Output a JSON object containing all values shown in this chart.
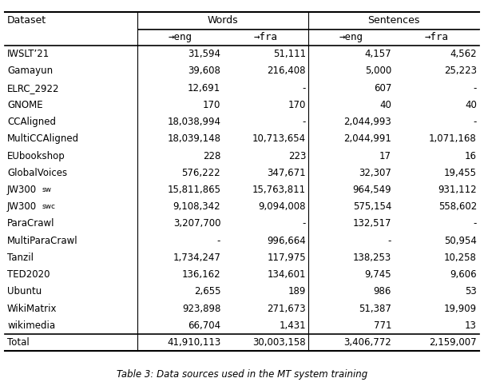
{
  "title": "Table 3: Data sources used in the MT system training",
  "col_headers": [
    "Dataset",
    "→eng",
    "→fra",
    "→eng",
    "→fra"
  ],
  "group_headers": [
    {
      "label": "Words",
      "cols": [
        1,
        2
      ]
    },
    {
      "label": "Sentences",
      "cols": [
        3,
        4
      ]
    }
  ],
  "rows": [
    [
      "IWSLT’21",
      "31,594",
      "51,111",
      "4,157",
      "4,562"
    ],
    [
      "Gamayun",
      "39,608",
      "216,408",
      "5,000",
      "25,223"
    ],
    [
      "ELRC_2922",
      "12,691",
      "-",
      "607",
      "-"
    ],
    [
      "GNOME",
      "170",
      "170",
      "40",
      "40"
    ],
    [
      "CCAligned",
      "18,038,994",
      "-",
      "2,044,993",
      "-"
    ],
    [
      "MultiCCAligned",
      "18,039,148",
      "10,713,654",
      "2,044,991",
      "1,071,168"
    ],
    [
      "EUbookshop",
      "228",
      "223",
      "17",
      "16"
    ],
    [
      "GlobalVoices",
      "576,222",
      "347,671",
      "32,307",
      "19,455"
    ],
    [
      "JW300 sw",
      "15,811,865",
      "15,763,811",
      "964,549",
      "931,112"
    ],
    [
      "JW300 swc",
      "9,108,342",
      "9,094,008",
      "575,154",
      "558,602"
    ],
    [
      "ParaCrawl",
      "3,207,700",
      "-",
      "132,517",
      "-"
    ],
    [
      "MultiParaCrawl",
      "-",
      "996,664",
      "-",
      "50,954"
    ],
    [
      "Tanzil",
      "1,734,247",
      "117,975",
      "138,253",
      "10,258"
    ],
    [
      "TED2020",
      "136,162",
      "134,601",
      "9,745",
      "9,606"
    ],
    [
      "Ubuntu",
      "2,655",
      "189",
      "986",
      "53"
    ],
    [
      "WikiMatrix",
      "923,898",
      "271,673",
      "51,387",
      "19,909"
    ],
    [
      "wikimedia",
      "66,704",
      "1,431",
      "771",
      "13"
    ]
  ],
  "total_row": [
    "Total",
    "41,910,113",
    "30,003,158",
    "3,406,772",
    "2,159,007"
  ],
  "special_rows": {
    "JW300 sw": {
      "col0_normal": "JW300 ",
      "col0_small": "sw"
    },
    "JW300 swc": {
      "col0_normal": "JW300 ",
      "col0_small": "swc"
    }
  }
}
